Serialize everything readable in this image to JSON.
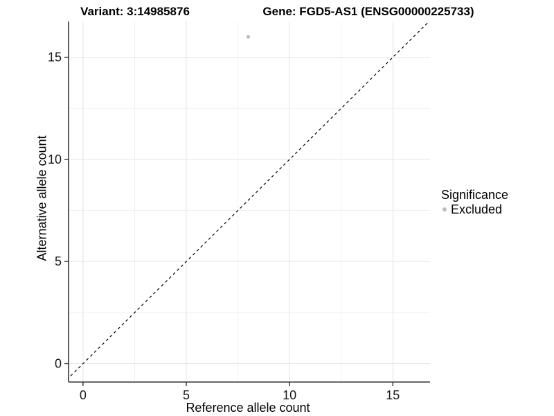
{
  "chart_data": {
    "type": "scatter",
    "title_left": "Variant: 3:14985876",
    "title_right": "Gene: FGD5-AS1 (ENSG00000225733)",
    "xlabel": "Reference allele count",
    "ylabel": "Alternative allele count",
    "xlim": [
      -0.7,
      16.8
    ],
    "ylim": [
      -0.9,
      16.75
    ],
    "x_ticks": [
      0,
      5,
      10,
      15
    ],
    "y_ticks": [
      0,
      5,
      10,
      15
    ],
    "x_minor_ticks": [
      2.5,
      7.5,
      12.5
    ],
    "y_minor_ticks": [
      2.5,
      7.5,
      12.5
    ],
    "grid": "major+minor",
    "identity_line": {
      "slope": 1,
      "intercept": 0,
      "style": "dashed",
      "color": "#000000"
    },
    "series": [
      {
        "name": "Excluded",
        "color": "#bdbdbd",
        "points": [
          {
            "x": 8,
            "y": 16
          }
        ]
      }
    ],
    "legend": {
      "title": "Significance",
      "position": "right",
      "items": [
        {
          "label": "Excluded",
          "color": "#bdbdbd"
        }
      ]
    },
    "colors": {
      "background": "#ffffff",
      "grid_major": "#e4e4e4",
      "grid_minor": "#f0f0f0",
      "axis_line": "#333333",
      "tick_mark": "#333333",
      "tick_text": "#1a1a1a"
    }
  }
}
